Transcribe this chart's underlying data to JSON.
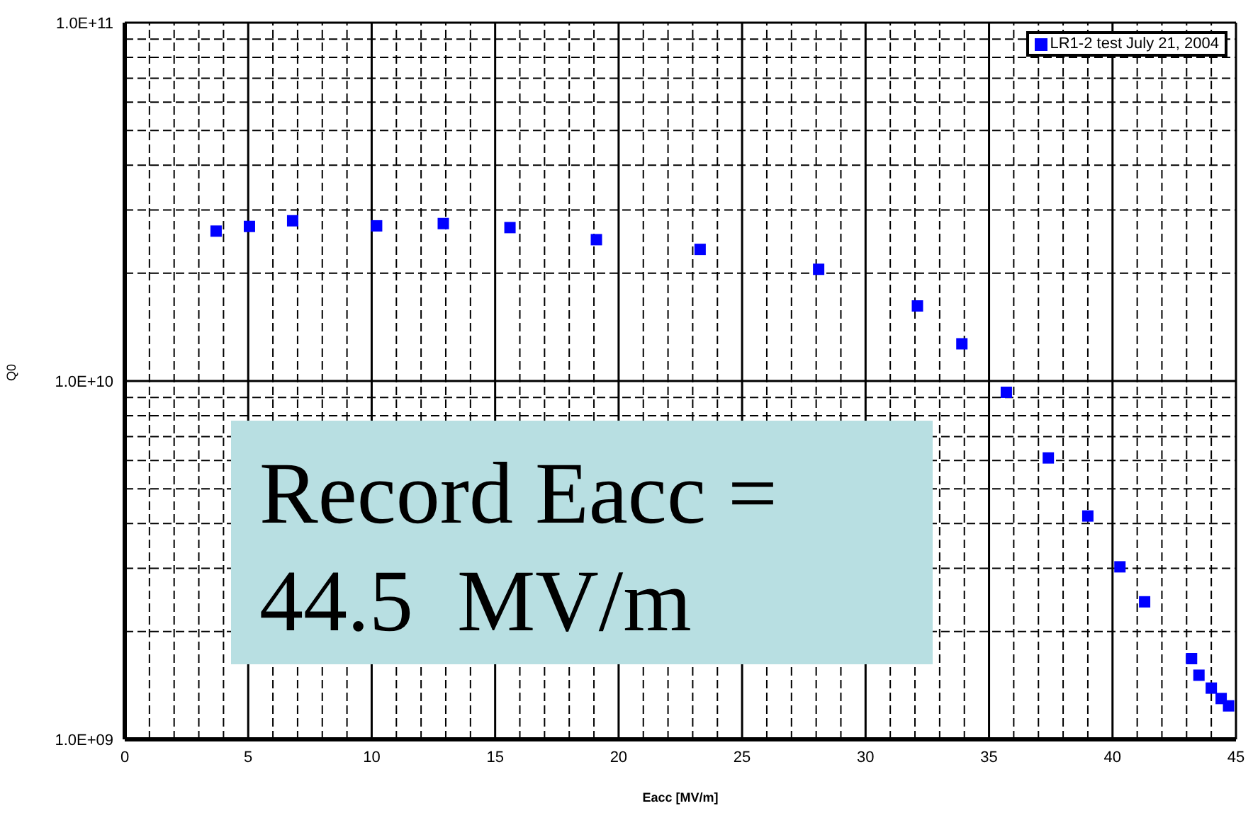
{
  "chart_data": {
    "type": "scatter",
    "xlabel": "Eacc [MV/m]",
    "ylabel": "Q0",
    "x": [
      3.7,
      5.05,
      6.8,
      10.2,
      12.9,
      15.6,
      19.1,
      23.3,
      28.1,
      32.1,
      33.9,
      35.7,
      37.4,
      39.0,
      40.3,
      41.3,
      43.2,
      43.5,
      44.0,
      44.4,
      44.7
    ],
    "series": [
      {
        "name": "LR1-2 test July 21, 2004",
        "color": "#0000ff",
        "values": [
          26200000000.0,
          27000000000.0,
          28000000000.0,
          27100000000.0,
          27500000000.0,
          26800000000.0,
          24800000000.0,
          23300000000.0,
          20500000000.0,
          16200000000.0,
          12700000000.0,
          9300000000.0,
          6100000000.0,
          4200000000.0,
          3030000000.0,
          2420000000.0,
          1680000000.0,
          1510000000.0,
          1390000000.0,
          1300000000.0,
          1240000000.0
        ]
      }
    ],
    "xlim": [
      0,
      45
    ],
    "xticks": [
      0,
      5,
      10,
      15,
      20,
      25,
      30,
      35,
      40,
      45
    ],
    "ylim": [
      1000000000.0,
      100000000000.0
    ],
    "yticks": [
      {
        "value": 1000000000.0,
        "label": "1.0E+09"
      },
      {
        "value": 10000000000.0,
        "label": "1.0E+10"
      },
      {
        "value": 100000000000.0,
        "label": "1.0E+11"
      }
    ],
    "log": "y",
    "grid": true,
    "legend": "top right",
    "marker": "square",
    "annotations": [
      "Record Eacc = 44.5  MV/m"
    ]
  }
}
